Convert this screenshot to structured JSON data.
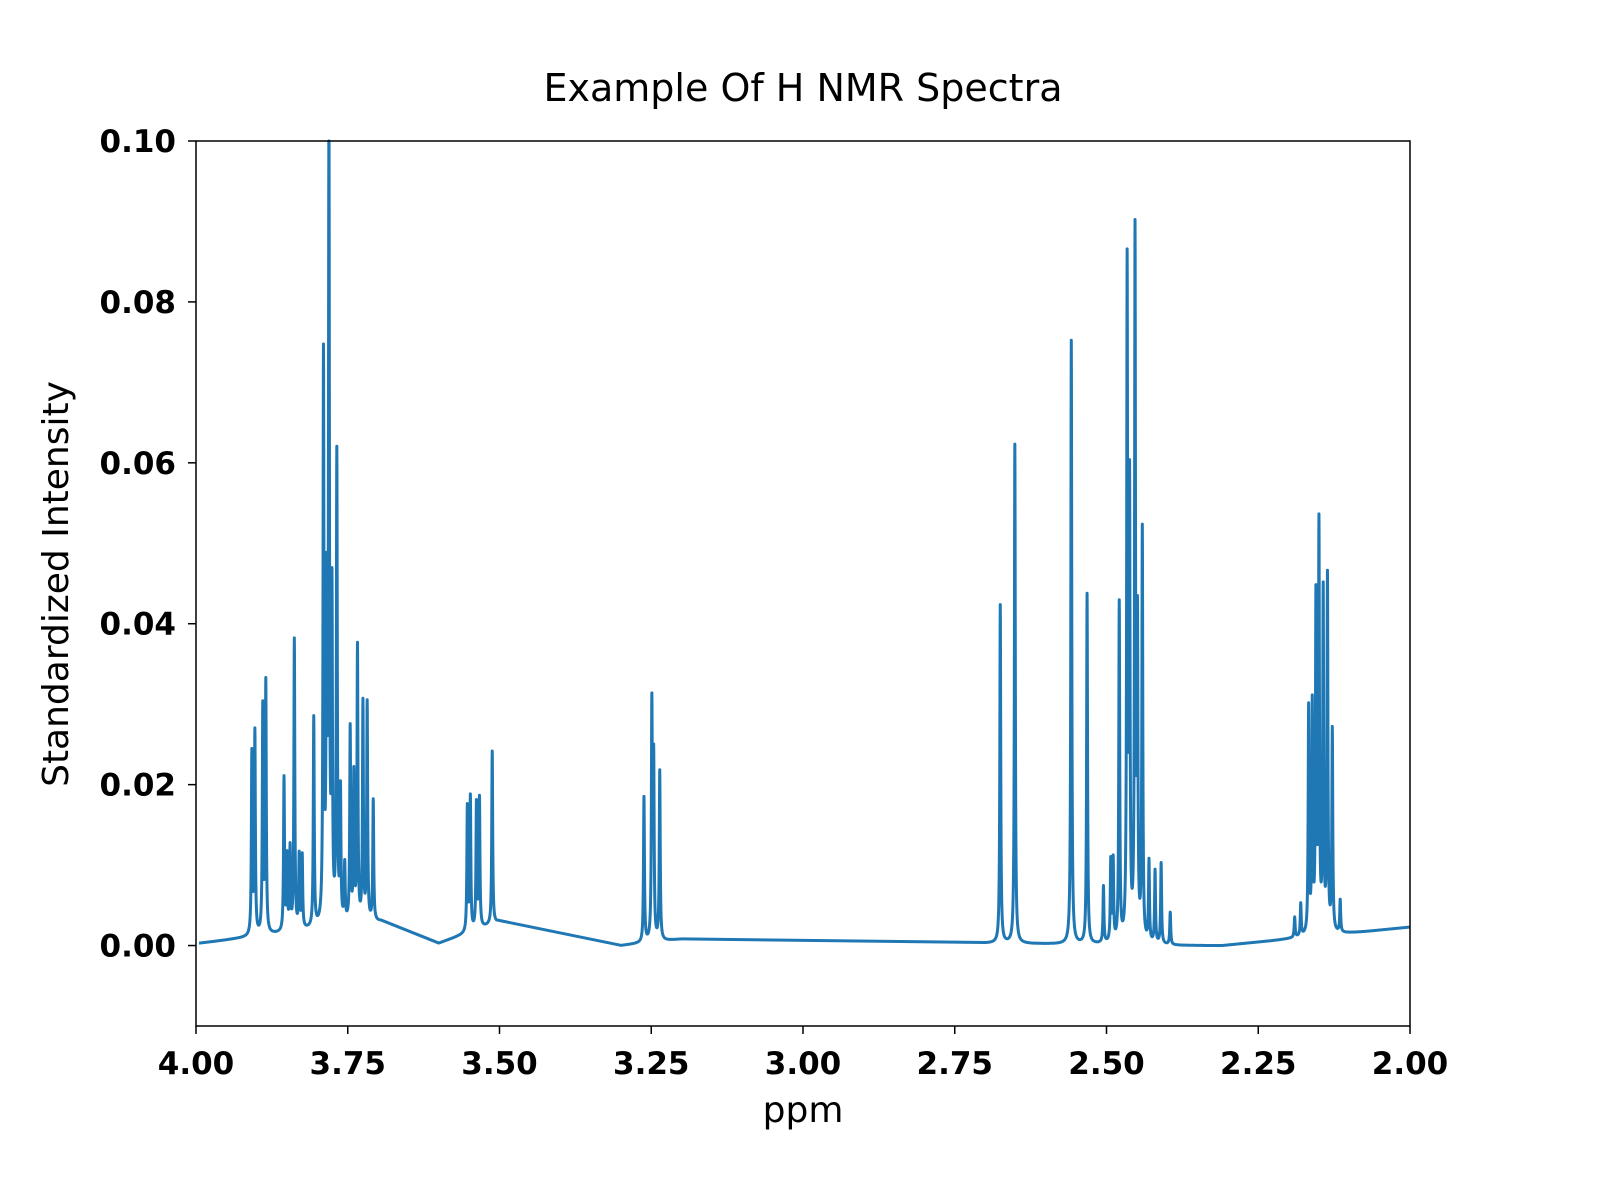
{
  "chart_data": {
    "type": "line",
    "title": "Example Of H NMR Spectra",
    "xlabel": "ppm",
    "ylabel": "Standardized Intensity",
    "xlim": [
      4.0,
      2.0
    ],
    "ylim": [
      -0.01,
      0.1
    ],
    "x_axis_reversed": true,
    "grid": false,
    "legend": "none",
    "line_color": "#1f77b4",
    "x_ticks": [
      "4.00",
      "3.75",
      "3.50",
      "3.25",
      "3.00",
      "2.75",
      "2.50",
      "2.25",
      "2.00"
    ],
    "y_ticks": [
      "0.00",
      "0.02",
      "0.04",
      "0.06",
      "0.08",
      "0.10"
    ],
    "x_tick_values": [
      4.0,
      3.75,
      3.5,
      3.25,
      3.0,
      2.75,
      2.5,
      2.25,
      2.0
    ],
    "y_tick_values": [
      0.0,
      0.02,
      0.04,
      0.06,
      0.08,
      0.1
    ],
    "series": [
      {
        "segments": [
          {
            "start": 3.995,
            "end": 3.695,
            "baseline_start": 0.0003,
            "baseline_end": 0.003
          },
          {
            "start": 3.6,
            "end": 3.505,
            "baseline_start": 0.0003,
            "baseline_end": 0.0028
          },
          {
            "start": 3.3,
            "end": 3.2,
            "baseline_start": 0.0,
            "baseline_end": 0.0008
          },
          {
            "start": 2.7,
            "end": 2.325,
            "baseline_start": 0.0003,
            "baseline_end": 0.0
          },
          {
            "start": 2.31,
            "end": 2.0,
            "baseline_start": 0.0,
            "baseline_end": 0.0023
          }
        ],
        "peaks": [
          {
            "x": 3.908,
            "y": 0.0225
          },
          {
            "x": 3.903,
            "y": 0.025
          },
          {
            "x": 3.89,
            "y": 0.028
          },
          {
            "x": 3.885,
            "y": 0.031
          },
          {
            "x": 3.855,
            "y": 0.019
          },
          {
            "x": 3.85,
            "y": 0.009
          },
          {
            "x": 3.845,
            "y": 0.01
          },
          {
            "x": 3.838,
            "y": 0.036
          },
          {
            "x": 3.83,
            "y": 0.009
          },
          {
            "x": 3.825,
            "y": 0.009
          },
          {
            "x": 3.806,
            "y": 0.026
          },
          {
            "x": 3.79,
            "y": 0.07
          },
          {
            "x": 3.785,
            "y": 0.039
          },
          {
            "x": 3.781,
            "y": 0.1
          },
          {
            "x": 3.776,
            "y": 0.04
          },
          {
            "x": 3.768,
            "y": 0.058
          },
          {
            "x": 3.762,
            "y": 0.016
          },
          {
            "x": 3.755,
            "y": 0.007
          },
          {
            "x": 3.746,
            "y": 0.024
          },
          {
            "x": 3.74,
            "y": 0.018
          },
          {
            "x": 3.734,
            "y": 0.034
          },
          {
            "x": 3.725,
            "y": 0.027
          },
          {
            "x": 3.718,
            "y": 0.027
          },
          {
            "x": 3.708,
            "y": 0.015
          },
          {
            "x": 3.553,
            "y": 0.0155
          },
          {
            "x": 3.548,
            "y": 0.0165
          },
          {
            "x": 3.538,
            "y": 0.0155
          },
          {
            "x": 3.533,
            "y": 0.016
          },
          {
            "x": 3.512,
            "y": 0.0215
          },
          {
            "x": 3.262,
            "y": 0.018
          },
          {
            "x": 3.249,
            "y": 0.029
          },
          {
            "x": 3.246,
            "y": 0.022
          },
          {
            "x": 3.236,
            "y": 0.021
          },
          {
            "x": 2.675,
            "y": 0.042
          },
          {
            "x": 2.651,
            "y": 0.062
          },
          {
            "x": 2.558,
            "y": 0.075
          },
          {
            "x": 2.532,
            "y": 0.0435
          },
          {
            "x": 2.505,
            "y": 0.007
          },
          {
            "x": 2.493,
            "y": 0.01
          },
          {
            "x": 2.489,
            "y": 0.01
          },
          {
            "x": 2.479,
            "y": 0.042
          },
          {
            "x": 2.466,
            "y": 0.083
          },
          {
            "x": 2.462,
            "y": 0.055
          },
          {
            "x": 2.453,
            "y": 0.087
          },
          {
            "x": 2.449,
            "y": 0.038
          },
          {
            "x": 2.441,
            "y": 0.051
          },
          {
            "x": 2.43,
            "y": 0.01
          },
          {
            "x": 2.42,
            "y": 0.009
          },
          {
            "x": 2.41,
            "y": 0.01
          },
          {
            "x": 2.395,
            "y": 0.004
          },
          {
            "x": 2.19,
            "y": 0.0025
          },
          {
            "x": 2.18,
            "y": 0.004
          },
          {
            "x": 2.167,
            "y": 0.028
          },
          {
            "x": 2.161,
            "y": 0.028
          },
          {
            "x": 2.155,
            "y": 0.041
          },
          {
            "x": 2.15,
            "y": 0.05
          },
          {
            "x": 2.143,
            "y": 0.042
          },
          {
            "x": 2.136,
            "y": 0.044
          },
          {
            "x": 2.128,
            "y": 0.025
          },
          {
            "x": 2.115,
            "y": 0.004
          }
        ]
      }
    ]
  }
}
